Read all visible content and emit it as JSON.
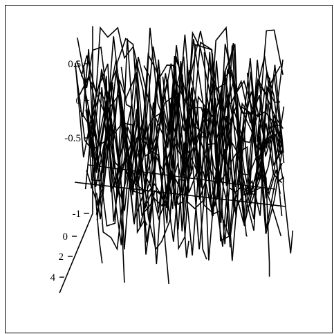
{
  "chart_data": {
    "type": "surface-wireframe",
    "colors": {
      "line": "#000000",
      "background": "#ffffff",
      "frame": "#000000"
    },
    "z_axis": {
      "ticks": [
        "0.5",
        "0",
        "-0.5",
        "-1"
      ],
      "range": [
        -1,
        0.8
      ]
    },
    "y_axis": {
      "ticks": [
        "0",
        "2",
        "4"
      ],
      "range": [
        0,
        4
      ]
    },
    "grid": false,
    "legend": "none",
    "series_count": 22,
    "samples_per_series": 26
  }
}
